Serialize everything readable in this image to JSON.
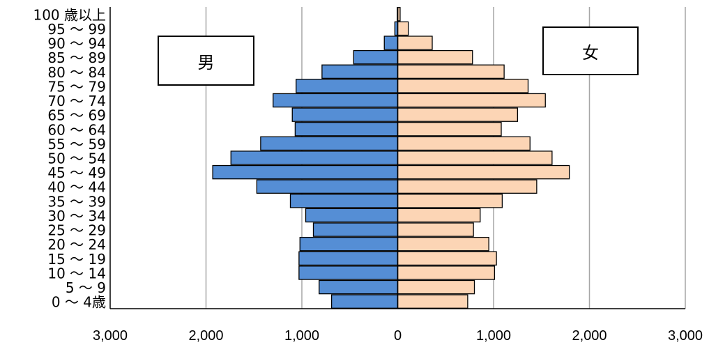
{
  "chart_data": {
    "type": "bar",
    "orientation": "horizontal-pyramid",
    "categories": [
      "0 ～ 4歳",
      "5 ～ 9",
      "10 ～ 14",
      "15 ～ 19",
      "20 ～ 24",
      "25 ～ 29",
      "30 ～ 34",
      "35 ～ 39",
      "40 ～ 44",
      "45 ～ 49",
      "50 ～ 54",
      "55 ～ 59",
      "60 ～ 64",
      "65 ～ 69",
      "70 ～ 74",
      "75 ～ 79",
      "80 ～ 84",
      "85 ～ 89",
      "90 ～ 94",
      "95 ～ 99",
      "100 歳以上"
    ],
    "series": [
      {
        "name": "男",
        "color": "#558ed5",
        "values": [
          690,
          820,
          1030,
          1030,
          1020,
          880,
          960,
          1120,
          1470,
          1930,
          1740,
          1430,
          1070,
          1100,
          1300,
          1060,
          790,
          460,
          140,
          30,
          5
        ]
      },
      {
        "name": "女",
        "color": "#fcd5b5",
        "values": [
          730,
          800,
          1010,
          1030,
          950,
          790,
          860,
          1090,
          1450,
          1790,
          1610,
          1380,
          1080,
          1250,
          1540,
          1360,
          1110,
          780,
          360,
          110,
          25
        ]
      }
    ],
    "xticks": [
      "3,000",
      "2,000",
      "1,000",
      "0",
      "1,000",
      "2,000",
      "3,000"
    ],
    "xlim": [
      -3000,
      3000
    ],
    "grid": true,
    "legend": [
      "男",
      "女"
    ]
  }
}
